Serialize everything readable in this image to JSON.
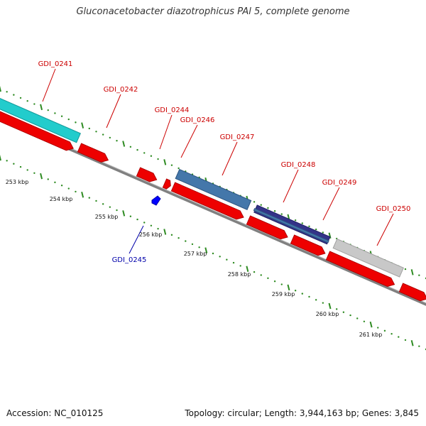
{
  "title": "Gluconacetobacter diazotrophicus PAl 5, complete genome",
  "footer": {
    "accession": "Accession: NC_010125",
    "topology": "Topology: circular; Length: 3,944,163 bp; Genes: 3,845"
  },
  "colors": {
    "forward_red": "#ee0000",
    "backbone": "#808080",
    "label_red": "#cc0000",
    "label_blue": "#0000aa",
    "dot_green": "#2e8b22",
    "cyan": "#22cccc",
    "steel_blue": "#4477aa",
    "dark_blue": "#333388",
    "light_gray": "#c8c8c8",
    "small_blue": "#0000ff"
  },
  "genes": [
    {
      "id": "GDI_0241",
      "name": "GDI_0241",
      "color": "label_red"
    },
    {
      "id": "GDI_0242",
      "name": "GDI_0242",
      "color": "label_red"
    },
    {
      "id": "GDI_0244",
      "name": "GDI_0244",
      "color": "label_red"
    },
    {
      "id": "GDI_0246",
      "name": "GDI_0246",
      "color": "label_red"
    },
    {
      "id": "GDI_0247",
      "name": "GDI_0247",
      "color": "label_red"
    },
    {
      "id": "GDI_0248",
      "name": "GDI_0248",
      "color": "label_red"
    },
    {
      "id": "GDI_0249",
      "name": "GDI_0249",
      "color": "label_red"
    },
    {
      "id": "GDI_0250",
      "name": "GDI_0250",
      "color": "label_red"
    },
    {
      "id": "GDI_0245",
      "name": "GDI_0245",
      "color": "label_blue"
    }
  ],
  "ticks": [
    "253 kbp",
    "254 kbp",
    "255 kbp",
    "256 kbp",
    "257 kbp",
    "258 kbp",
    "259 kbp",
    "260 kbp",
    "261 kbp"
  ]
}
